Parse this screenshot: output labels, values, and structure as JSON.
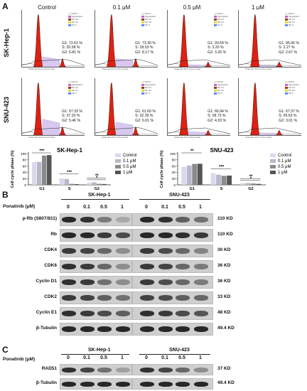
{
  "panels": {
    "a": "A",
    "b": "B",
    "c": "C"
  },
  "conditions": [
    "Control",
    "0.1 μM",
    "0.5 μM",
    "1 μM"
  ],
  "cell_lines": [
    "SK-Hep-1",
    "SNU-423"
  ],
  "hist_legend": [
    "Debris",
    "Aggregates",
    "Dip G1",
    "Dip G2",
    "Dip S"
  ],
  "hist_xlabel": "Channels (FL2-A-FL2-Area)",
  "stats": {
    "sk": [
      [
        "G1: 72.61 %",
        "S: 20.58 %",
        "G2: 6.81 %"
      ],
      [
        "G1: 73.30 %",
        "S: 18.53 %",
        "G2: 8.17 %"
      ],
      [
        "G1: 93.54 %",
        "S: 3.20 %",
        "G2: 3.26 %"
      ],
      [
        "G1: 95.06 %",
        "S: 2.27 %",
        "G2: 2.67 %"
      ]
    ],
    "snu": [
      [
        "G1: 57.33 %",
        "S: 37.20 %",
        "G2: 5.46 %"
      ],
      [
        "G1: 61.60 %",
        "S: 32.39 %",
        "G2: 6.01 %"
      ],
      [
        "G1: 66.94 %",
        "S: 28.73 %",
        "G2: 4.33 %"
      ],
      [
        "G1: 67.37 %",
        "S: 29.63 %",
        "G2: 3.01 %"
      ]
    ]
  },
  "chart_data": [
    {
      "type": "bar",
      "title": "SK-Hep-1",
      "ylabel": "Cell cycle phase (%)",
      "ylim": [
        0,
        100
      ],
      "yticks": [
        "0",
        "20",
        "40",
        "60",
        "80",
        "100"
      ],
      "categories": [
        "G1",
        "S",
        "G2"
      ],
      "series": [
        {
          "name": "Control",
          "values": [
            72.61,
            20.58,
            6.81
          ]
        },
        {
          "name": "0.1 μM",
          "values": [
            73.3,
            18.53,
            8.17
          ]
        },
        {
          "name": "0.5 μM",
          "values": [
            93.54,
            3.2,
            3.26
          ]
        },
        {
          "name": "1 μM",
          "values": [
            95.06,
            2.27,
            2.67
          ]
        }
      ],
      "sig": [
        "***",
        "***",
        "**",
        "*"
      ]
    },
    {
      "type": "bar",
      "title": "SNU-423",
      "ylabel": "Cell cycle phase (%)",
      "ylim": [
        0,
        100
      ],
      "yticks": [
        "0",
        "20",
        "40",
        "60",
        "80",
        "100"
      ],
      "categories": [
        "G1",
        "S",
        "G2"
      ],
      "series": [
        {
          "name": "Control",
          "values": [
            57.33,
            37.2,
            5.46
          ]
        },
        {
          "name": "0.1 μM",
          "values": [
            61.6,
            32.39,
            6.01
          ]
        },
        {
          "name": "0.5 μM",
          "values": [
            66.94,
            28.73,
            4.33
          ]
        },
        {
          "name": "1 μM",
          "values": [
            67.37,
            29.63,
            3.01
          ]
        }
      ],
      "sig": [
        "**",
        "***",
        "**",
        "*"
      ]
    }
  ],
  "colors": {
    "series": [
      "#d9d9ee",
      "#b8b8c8",
      "#8a8a8a",
      "#555555"
    ],
    "hist_fill": "#e02010"
  },
  "blot_b": {
    "treatment_label": "Ponatinib (μM)",
    "doses": [
      "0",
      "0.1",
      "0.5",
      "1",
      "0",
      "0.1",
      "0.5",
      "1"
    ],
    "proteins": [
      {
        "name": "p-Rb (S807/811)",
        "kd": "110 KD"
      },
      {
        "name": "Rb",
        "kd": "110 KD"
      },
      {
        "name": "CDK4",
        "kd": "30 KD"
      },
      {
        "name": "CDK6",
        "kd": "36 KD"
      },
      {
        "name": "Cyclin D1",
        "kd": "36 KD"
      },
      {
        "name": "CDK2",
        "kd": "33 KD"
      },
      {
        "name": "Cyclin E1",
        "kd": "48 KD"
      },
      {
        "name": "β-Tubulin",
        "kd": "49.4 KD"
      }
    ]
  },
  "blot_c": {
    "treatment_label": "Ponatinib (μM)",
    "doses": [
      "0",
      "0.1",
      "0.5",
      "1",
      "0",
      "0.1",
      "0.5",
      "1"
    ],
    "proteins": [
      {
        "name": "RAD51",
        "kd": "37 KD"
      },
      {
        "name": "β-Tubulin",
        "kd": "49.4 KD"
      }
    ]
  }
}
